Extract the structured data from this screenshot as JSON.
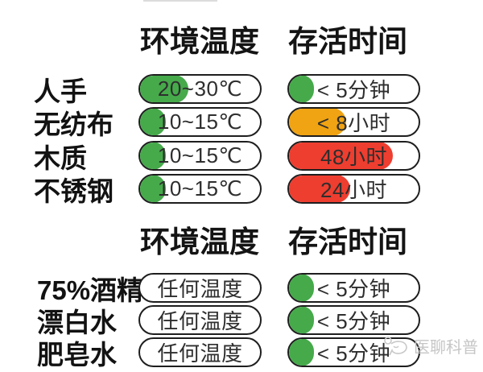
{
  "colors": {
    "green": "#46aa4b",
    "orange": "#f0a313",
    "red": "#ee3e30",
    "pill_border": "#1e1e1e",
    "heading_text": "#141414",
    "pill_text": "#2e2e2e",
    "watermark": "#c6c6c6"
  },
  "sections": [
    {
      "headers": {
        "temperature": "环境温度",
        "survival": "存活时间"
      },
      "rows": [
        {
          "label": "人手",
          "temp": {
            "text": "20~30℃",
            "fill_color": "green",
            "fill_pct": 41
          },
          "time": {
            "text": "< 5分钟",
            "fill_color": "green",
            "fill_pct": 20
          }
        },
        {
          "label": "无纺布",
          "temp": {
            "text": "10~15℃",
            "fill_color": "green",
            "fill_pct": 22
          },
          "time": {
            "text": "< 8小时",
            "fill_color": "orange",
            "fill_pct": 45
          }
        },
        {
          "label": "木质",
          "temp": {
            "text": "10~15℃",
            "fill_color": "green",
            "fill_pct": 22
          },
          "time": {
            "text": "48小时",
            "fill_color": "red",
            "fill_pct": 81
          }
        },
        {
          "label": "不锈钢",
          "temp": {
            "text": "10~15℃",
            "fill_color": "green",
            "fill_pct": 22
          },
          "time": {
            "text": "24小时",
            "fill_color": "red",
            "fill_pct": 48
          }
        }
      ]
    },
    {
      "headers": {
        "temperature": "环境温度",
        "survival": "存活时间"
      },
      "rows": [
        {
          "label": "75%酒精",
          "temp": {
            "text": "任何温度",
            "fill_color": "none",
            "fill_pct": 0
          },
          "time": {
            "text": "< 5分钟",
            "fill_color": "green",
            "fill_pct": 20
          }
        },
        {
          "label": "漂白水",
          "temp": {
            "text": "任何温度",
            "fill_color": "none",
            "fill_pct": 0
          },
          "time": {
            "text": "< 5分钟",
            "fill_color": "green",
            "fill_pct": 20
          }
        },
        {
          "label": "肥皂水",
          "temp": {
            "text": "任何温度",
            "fill_color": "none",
            "fill_pct": 0
          },
          "time": {
            "text": "< 5分钟",
            "fill_color": "green",
            "fill_pct": 20
          }
        }
      ]
    }
  ],
  "watermark": {
    "text": "医聊科普",
    "icon": "stethoscope-chat-icon"
  },
  "chart_data": [
    {
      "type": "table",
      "columns": [
        "",
        "环境温度",
        "存活时间"
      ],
      "rows": [
        [
          "人手",
          "20~30℃",
          "< 5分钟"
        ],
        [
          "无纺布",
          "10~15℃",
          "< 8小时"
        ],
        [
          "木质",
          "10~15℃",
          "48小时"
        ],
        [
          "不锈钢",
          "10~15℃",
          "24小时"
        ]
      ]
    },
    {
      "type": "table",
      "columns": [
        "",
        "环境温度",
        "存活时间"
      ],
      "rows": [
        [
          "75%酒精",
          "任何温度",
          "< 5分钟"
        ],
        [
          "漂白水",
          "任何温度",
          "< 5分钟"
        ],
        [
          "肥皂水",
          "任何温度",
          "< 5分钟"
        ]
      ]
    }
  ]
}
